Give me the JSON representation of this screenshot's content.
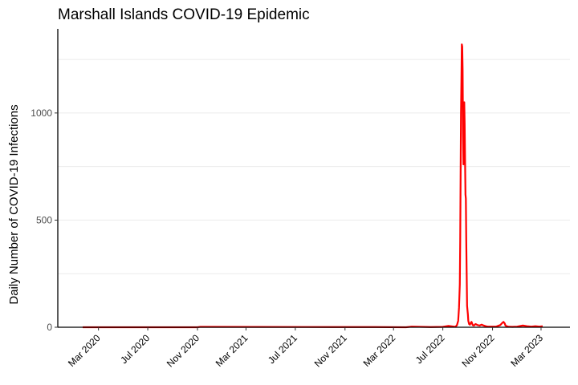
{
  "chart_data": {
    "type": "line",
    "title": "Marshall Islands COVID-19 Epidemic",
    "xlabel": "",
    "ylabel": "Daily Number of COVID-19 Infections",
    "x_tick_labels": [
      "Mar 2020",
      "Jul 2020",
      "Nov 2020",
      "Mar 2021",
      "Jul 2021",
      "Nov 2021",
      "Mar 2022",
      "Jul 2022",
      "Nov 2022",
      "Mar 2023"
    ],
    "x_tick_dates": [
      "2020-03-01",
      "2020-07-01",
      "2020-11-01",
      "2021-03-01",
      "2021-07-01",
      "2021-11-01",
      "2022-03-01",
      "2022-07-01",
      "2022-11-01",
      "2023-03-01"
    ],
    "xlim": [
      "2020-01-22",
      "2023-03-09"
    ],
    "y_ticks": [
      0,
      500,
      1000
    ],
    "ylim": [
      0,
      1400
    ],
    "grid": true,
    "line_color": "#ff0000",
    "series": [
      {
        "x": [
          "2020-01-22",
          "2020-11-01",
          "2020-11-08",
          "2021-10-01",
          "2022-01-15",
          "2022-04-01",
          "2022-04-15",
          "2022-06-01",
          "2022-07-01",
          "2022-07-15",
          "2022-08-01",
          "2022-08-05",
          "2022-08-08",
          "2022-08-10",
          "2022-08-12",
          "2022-08-13",
          "2022-08-14",
          "2022-08-15",
          "2022-08-16",
          "2022-08-17",
          "2022-08-18",
          "2022-08-19",
          "2022-08-20",
          "2022-08-21",
          "2022-08-22",
          "2022-08-23",
          "2022-08-24",
          "2022-08-25",
          "2022-08-26",
          "2022-08-27",
          "2022-08-28",
          "2022-08-29",
          "2022-08-30",
          "2022-08-31",
          "2022-09-01",
          "2022-09-02",
          "2022-09-04",
          "2022-09-06",
          "2022-09-08",
          "2022-09-10",
          "2022-09-13",
          "2022-09-16",
          "2022-09-20",
          "2022-09-25",
          "2022-09-30",
          "2022-10-05",
          "2022-10-10",
          "2022-10-15",
          "2022-10-20",
          "2022-10-25",
          "2022-11-01",
          "2022-11-10",
          "2022-11-20",
          "2022-11-25",
          "2022-11-28",
          "2022-12-01",
          "2022-12-03",
          "2022-12-06",
          "2022-12-10",
          "2022-12-20",
          "2023-01-01",
          "2023-01-15",
          "2023-01-25",
          "2023-02-05",
          "2023-02-15",
          "2023-02-25",
          "2023-03-05"
        ],
        "y": [
          0,
          0,
          2,
          1,
          1,
          0,
          3,
          1,
          2,
          6,
          2,
          10,
          30,
          90,
          200,
          400,
          700,
          1000,
          1150,
          1320,
          1310,
          1200,
          900,
          760,
          820,
          1050,
          950,
          780,
          620,
          600,
          400,
          250,
          100,
          80,
          60,
          30,
          15,
          12,
          20,
          25,
          10,
          8,
          15,
          10,
          8,
          12,
          8,
          5,
          3,
          3,
          3,
          3,
          10,
          20,
          25,
          18,
          8,
          5,
          3,
          2,
          3,
          8,
          5,
          3,
          5,
          3,
          5
        ]
      }
    ]
  }
}
